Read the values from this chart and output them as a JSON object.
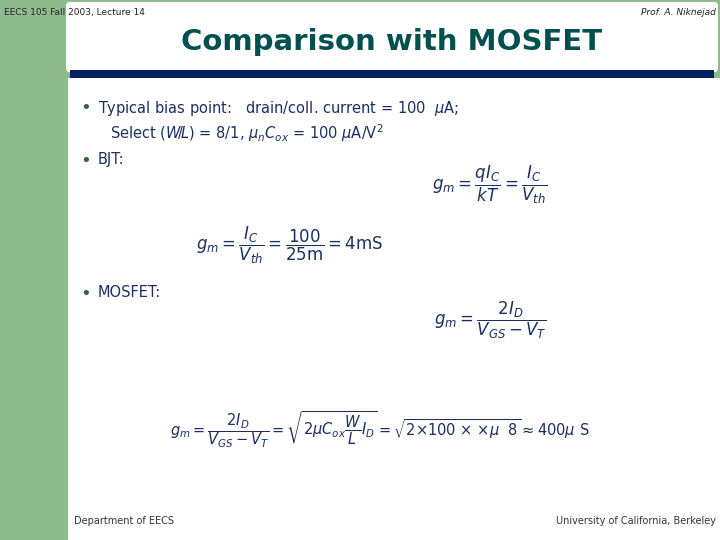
{
  "header_left": "EECS 105 Fall 2003, Lecture 14",
  "header_right": "Prof. A. Niknejad",
  "title": "Comparison with MOSFET",
  "footer_left": "Department of EECS",
  "footer_right": "University of California, Berkeley",
  "bg_color": "#ffffff",
  "header_bg": "#8fbc8f",
  "title_color": "#005050",
  "header_text_color": "#222222",
  "bar_color": "#002060",
  "left_panel_color": "#8fbc8f",
  "bullet_color": "#336633",
  "body_text_color": "#1a3060",
  "footer_text_color": "#333333"
}
